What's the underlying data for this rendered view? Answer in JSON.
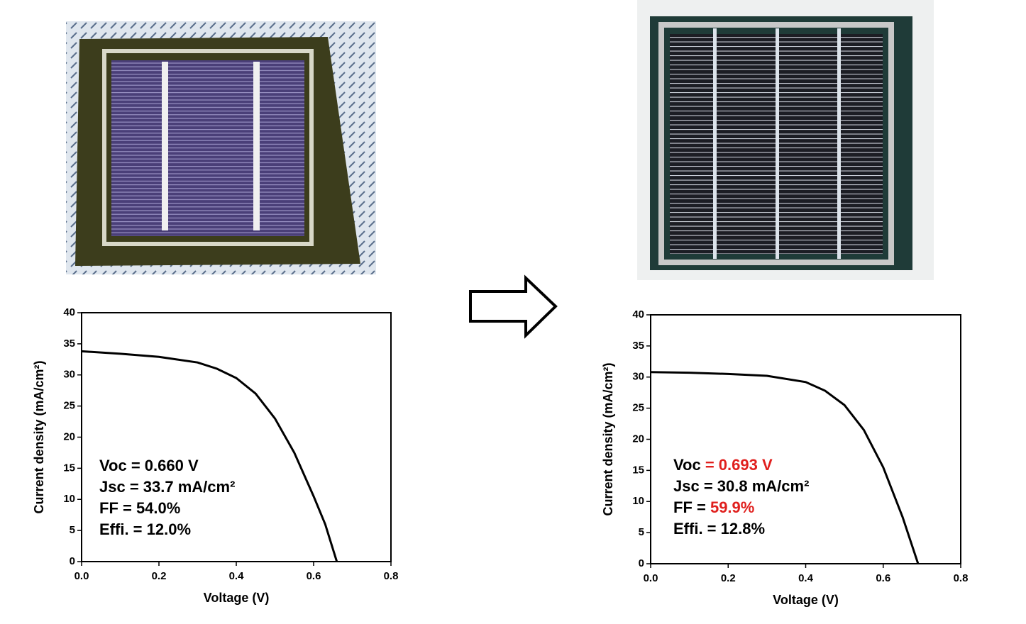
{
  "chart_data": [
    {
      "type": "line",
      "x_label": "Voltage (V)",
      "y_label": "Current density (mA/cm²)",
      "xlim": [
        0,
        0.8
      ],
      "ylim": [
        0,
        40
      ],
      "xticks": [
        {
          "value": 0,
          "label": "0.0"
        },
        0.2,
        0.4,
        0.6,
        0.8
      ],
      "yticks": [
        0,
        5,
        10,
        15,
        20,
        25,
        30,
        35,
        40
      ],
      "series": [
        {
          "color": "#000000",
          "x": [
            0,
            0.1,
            0.2,
            0.3,
            0.35,
            0.4,
            0.45,
            0.5,
            0.55,
            0.6,
            0.63,
            0.66
          ],
          "values": [
            33.8,
            33.4,
            32.9,
            32.0,
            31.0,
            29.5,
            27.0,
            23.0,
            17.5,
            10.5,
            6.0,
            0
          ]
        }
      ],
      "annotations": [
        {
          "parts": [
            {
              "text": "Voc = 0.660 V"
            }
          ]
        },
        {
          "parts": [
            {
              "text": "Jsc = 33.7 mA/cm²"
            }
          ]
        },
        {
          "parts": [
            {
              "text": "FF = 54.0%"
            }
          ]
        },
        {
          "parts": [
            {
              "text": "Effi. = 12.0%"
            }
          ]
        }
      ]
    },
    {
      "type": "line",
      "x_label": "Voltage (V)",
      "y_label": "Current density (mA/cm²)",
      "xlim": [
        0,
        0.8
      ],
      "ylim": [
        0,
        40
      ],
      "xticks": [
        {
          "value": 0,
          "label": "0.0"
        },
        0.2,
        0.4,
        0.6,
        0.8
      ],
      "yticks": [
        0,
        5,
        10,
        15,
        20,
        25,
        30,
        35,
        40
      ],
      "series": [
        {
          "color": "#000000",
          "x": [
            0,
            0.1,
            0.2,
            0.3,
            0.4,
            0.45,
            0.5,
            0.55,
            0.6,
            0.65,
            0.69
          ],
          "values": [
            30.8,
            30.7,
            30.5,
            30.2,
            29.2,
            27.8,
            25.5,
            21.5,
            15.5,
            7.5,
            0
          ]
        }
      ],
      "annotations": [
        {
          "parts": [
            {
              "text": "Voc "
            },
            {
              "text": "= 0.693 V",
              "color": "#e0201e"
            }
          ]
        },
        {
          "parts": [
            {
              "text": "Jsc = 30.8 mA/cm²"
            }
          ]
        },
        {
          "parts": [
            {
              "text": "FF = "
            },
            {
              "text": "59.9%",
              "color": "#e0201e"
            }
          ]
        },
        {
          "parts": [
            {
              "text": "Effi. = 12.8%"
            }
          ]
        }
      ]
    }
  ]
}
